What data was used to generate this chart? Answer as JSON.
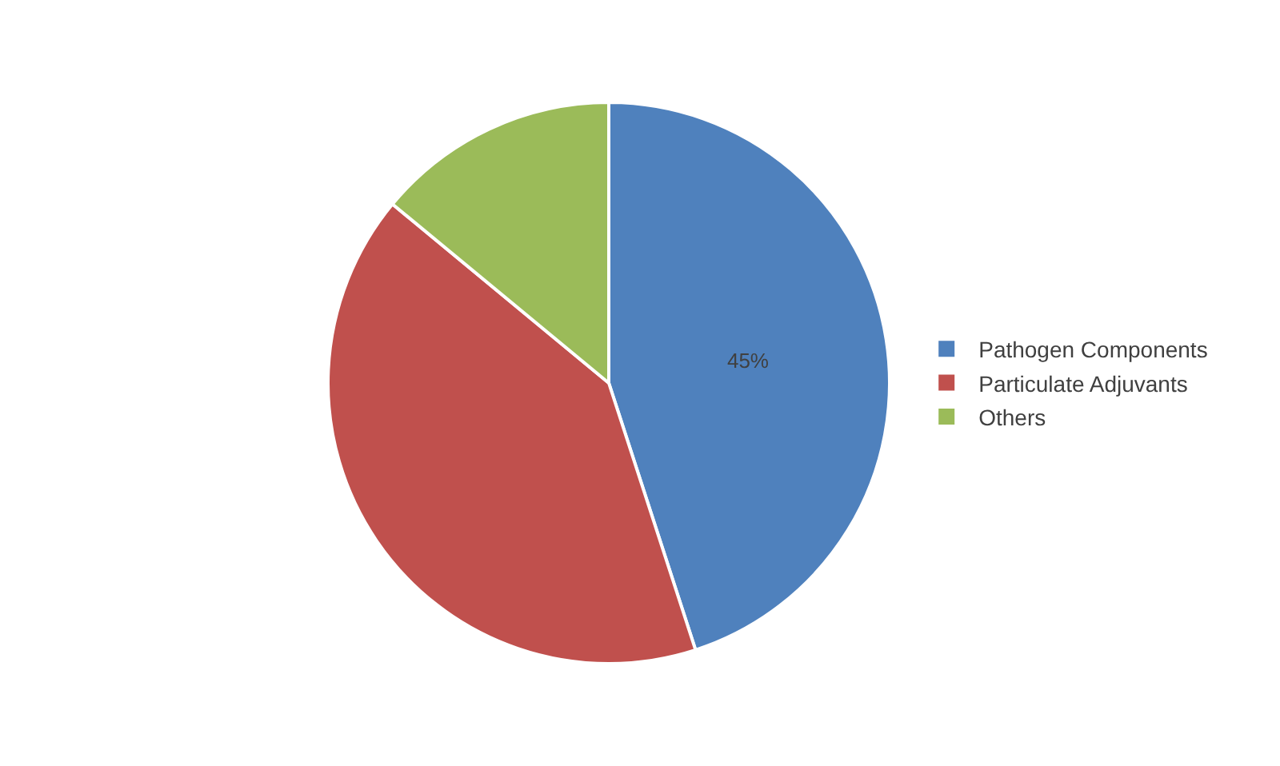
{
  "chart_data": {
    "type": "pie",
    "categories": [
      "Pathogen Components",
      "Particulate Adjuvants",
      "Others"
    ],
    "values": [
      45,
      41,
      14
    ],
    "colors": [
      "#4f81bd",
      "#c0504d",
      "#9bbb59"
    ],
    "value_labels": [
      "45%",
      null,
      null
    ],
    "legend": "right"
  }
}
